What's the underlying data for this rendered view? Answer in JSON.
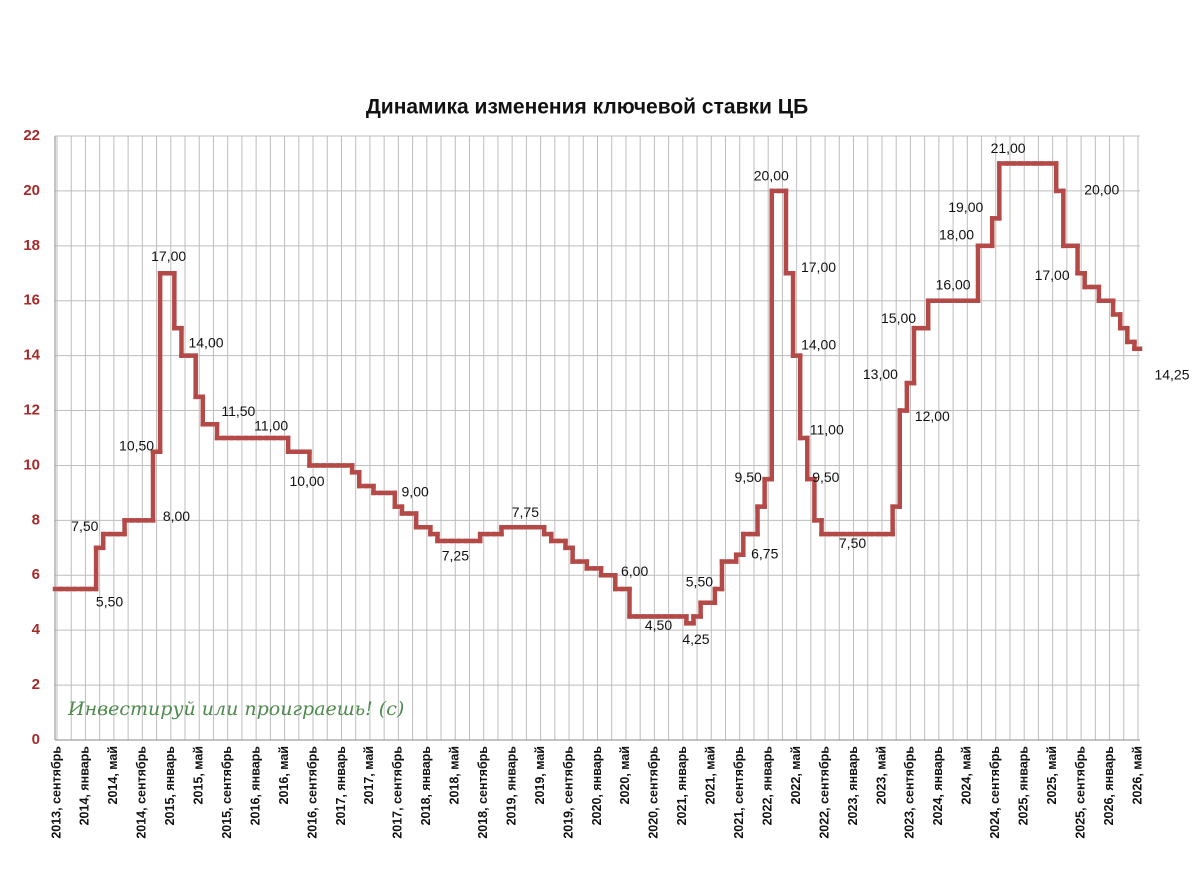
{
  "chart_data": {
    "type": "step",
    "title": "Динамика изменения ключевой ставки ЦБ",
    "watermark": "Инвестируй или проиграешь! (с)",
    "categories": [
      "2013, сентябрь",
      null,
      null,
      null,
      "2014, январь",
      null,
      null,
      null,
      "2014, май",
      null,
      null,
      null,
      "2014, сентябрь",
      null,
      null,
      null,
      "2015, январь",
      null,
      null,
      null,
      "2015, май",
      null,
      null,
      null,
      "2015, сентябрь",
      null,
      null,
      null,
      "2016, январь",
      null,
      null,
      null,
      "2016, май",
      null,
      null,
      null,
      "2016, сентябрь",
      null,
      null,
      null,
      "2017, январь",
      null,
      null,
      null,
      "2017, май",
      null,
      null,
      null,
      "2017, сентябрь",
      null,
      null,
      null,
      "2018, январь",
      null,
      null,
      null,
      "2018, май",
      null,
      null,
      null,
      "2018, сентябрь",
      null,
      null,
      null,
      "2019, январь",
      null,
      null,
      null,
      "2019, май",
      null,
      null,
      null,
      "2019, сентябрь",
      null,
      null,
      null,
      "2020, январь",
      null,
      null,
      null,
      "2020, май",
      null,
      null,
      null,
      "2020, сентябрь",
      null,
      null,
      null,
      "2021, январь",
      null,
      null,
      null,
      "2021, май",
      null,
      null,
      null,
      "2021, сентябрь",
      null,
      null,
      null,
      "2022, январь",
      null,
      null,
      null,
      "2022, май",
      null,
      null,
      null,
      "2022, сентябрь",
      null,
      null,
      null,
      "2023, январь",
      null,
      null,
      null,
      "2023, май",
      null,
      null,
      null,
      "2023, сентябрь",
      null,
      null,
      null,
      "2024, январь",
      null,
      null,
      null,
      "2024, май",
      null,
      null,
      null,
      "2024, сентябрь",
      null,
      null,
      null,
      "2025, январь",
      null,
      null,
      null,
      "2025, май",
      null,
      null,
      null,
      "2025, сентябрь",
      null,
      null,
      null,
      "2026, январь",
      null,
      null,
      null,
      "2026, май"
    ],
    "values": [
      5.5,
      5.5,
      5.5,
      5.5,
      5.5,
      5.5,
      7,
      7.5,
      7.5,
      7.5,
      8,
      8,
      8,
      8,
      10.5,
      17,
      17,
      15,
      14,
      14,
      12.5,
      11.5,
      11.5,
      11,
      11,
      11,
      11,
      11,
      11,
      11,
      11,
      11,
      11,
      10.5,
      10.5,
      10.5,
      10,
      10,
      10,
      10,
      10,
      10,
      9.75,
      9.25,
      9.25,
      9,
      9,
      9,
      8.5,
      8.25,
      8.25,
      7.75,
      7.75,
      7.5,
      7.25,
      7.25,
      7.25,
      7.25,
      7.25,
      7.25,
      7.5,
      7.5,
      7.5,
      7.75,
      7.75,
      7.75,
      7.75,
      7.75,
      7.75,
      7.5,
      7.25,
      7.25,
      7,
      6.5,
      6.5,
      6.25,
      6.25,
      6,
      6,
      5.5,
      5.5,
      4.5,
      4.5,
      4.5,
      4.5,
      4.5,
      4.5,
      4.5,
      4.5,
      4.25,
      4.5,
      5,
      5,
      5.5,
      6.5,
      6.5,
      6.75,
      7.5,
      7.5,
      8.5,
      9.5,
      20,
      20,
      17,
      14,
      11,
      9.5,
      8,
      7.5,
      7.5,
      7.5,
      7.5,
      7.5,
      7.5,
      7.5,
      7.5,
      7.5,
      7.5,
      8.5,
      12,
      13,
      15,
      15,
      16,
      16,
      16,
      16,
      16,
      16,
      16,
      18,
      18,
      19,
      21,
      21,
      21,
      21,
      21,
      21,
      21,
      21,
      20,
      18,
      18,
      17,
      16.5,
      16.5,
      16,
      16,
      15.5,
      15,
      14.5,
      14.25
    ],
    "value_labels": [
      null,
      null,
      null,
      null,
      null,
      "5,50",
      null,
      "7,50",
      null,
      null,
      null,
      null,
      null,
      "8,00",
      "10,50",
      "17,00",
      null,
      null,
      "14,00",
      null,
      null,
      "11,50",
      null,
      null,
      null,
      null,
      null,
      null,
      "11,00",
      null,
      null,
      null,
      null,
      null,
      null,
      null,
      "10,00",
      null,
      null,
      null,
      null,
      null,
      null,
      null,
      null,
      null,
      "9,00",
      null,
      null,
      null,
      null,
      null,
      null,
      null,
      null,
      null,
      null,
      "7,25",
      null,
      null,
      null,
      null,
      null,
      null,
      null,
      null,
      "7,75",
      null,
      null,
      null,
      null,
      null,
      null,
      null,
      null,
      null,
      null,
      "6,00",
      null,
      null,
      null,
      null,
      null,
      null,
      null,
      "4,50",
      null,
      null,
      null,
      "4,25",
      null,
      null,
      null,
      "5,50",
      null,
      null,
      "6,75",
      null,
      null,
      null,
      "9,50",
      "20,00",
      null,
      "17,00",
      "14,00",
      "11,00",
      "9,50",
      null,
      null,
      null,
      null,
      null,
      "7,50",
      null,
      null,
      null,
      null,
      null,
      null,
      "12,00",
      "13,00",
      "15,00",
      null,
      null,
      null,
      null,
      "16,00",
      null,
      null,
      null,
      "18,00",
      null,
      "19,00",
      null,
      null,
      "21,00",
      null,
      null,
      null,
      null,
      null,
      "20,00",
      null,
      null,
      "17,00",
      null,
      null,
      null,
      null,
      null,
      null,
      null,
      "14,25"
    ],
    "color": "#b44a48",
    "axis_color": "#a52a2a",
    "watermark_color": "#4e8a4e",
    "ylim": [
      0,
      22
    ],
    "yticks": [
      0,
      2,
      4,
      6,
      8,
      10,
      12,
      14,
      16,
      18,
      20,
      22
    ],
    "grid": true
  }
}
